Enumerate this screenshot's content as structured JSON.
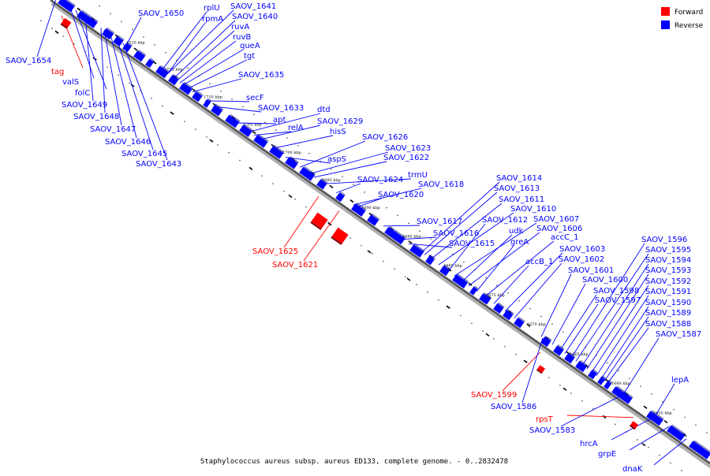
{
  "legend": {
    "forward_label": "Forward",
    "reverse_label": "Reverse",
    "forward_color": "#ff0000",
    "reverse_color": "#0000ff"
  },
  "caption": "Staphylococcus aureus subsp. aureus ED133, complete genome. - 0..2832478",
  "ticks": [
    "1720 kbp",
    "1715 kbp",
    "1710 kbp",
    "1705 kbp",
    "1700 kbp",
    "1695 kbp",
    "1690 kbp",
    "1685 kbp",
    "1680 kbp",
    "1675 kbp",
    "1670 kbp",
    "1665 kbp",
    "1660 kbp",
    "1655 kbp"
  ],
  "genes": [
    {
      "name": "SAOV_1650",
      "strand": "reverse"
    },
    {
      "name": "rplU",
      "strand": "reverse"
    },
    {
      "name": "SAOV_1641",
      "strand": "reverse"
    },
    {
      "name": "rpmA",
      "strand": "reverse"
    },
    {
      "name": "SAOV_1640",
      "strand": "reverse"
    },
    {
      "name": "ruvA",
      "strand": "reverse"
    },
    {
      "name": "ruvB",
      "strand": "reverse"
    },
    {
      "name": "queA",
      "strand": "reverse"
    },
    {
      "name": "tgt",
      "strand": "reverse"
    },
    {
      "name": "SAOV_1635",
      "strand": "reverse"
    },
    {
      "name": "secF",
      "strand": "reverse"
    },
    {
      "name": "SAOV_1633",
      "strand": "reverse"
    },
    {
      "name": "apt",
      "strand": "reverse"
    },
    {
      "name": "dtd",
      "strand": "reverse"
    },
    {
      "name": "relA",
      "strand": "reverse"
    },
    {
      "name": "SAOV_1629",
      "strand": "reverse"
    },
    {
      "name": "hisS",
      "strand": "reverse"
    },
    {
      "name": "aspS",
      "strand": "reverse"
    },
    {
      "name": "SAOV_1626",
      "strand": "reverse"
    },
    {
      "name": "SAOV_1623",
      "strand": "reverse"
    },
    {
      "name": "SAOV_1622",
      "strand": "reverse"
    },
    {
      "name": "trmU",
      "strand": "reverse"
    },
    {
      "name": "SAOV_1624",
      "strand": "reverse"
    },
    {
      "name": "SAOV_1618",
      "strand": "reverse"
    },
    {
      "name": "SAOV_1620",
      "strand": "reverse"
    },
    {
      "name": "SAOV_1614",
      "strand": "reverse"
    },
    {
      "name": "SAOV_1613",
      "strand": "reverse"
    },
    {
      "name": "SAOV_1611",
      "strand": "reverse"
    },
    {
      "name": "SAOV_1610",
      "strand": "reverse"
    },
    {
      "name": "SAOV_1617",
      "strand": "reverse"
    },
    {
      "name": "SAOV_1612",
      "strand": "reverse"
    },
    {
      "name": "SAOV_1607",
      "strand": "reverse"
    },
    {
      "name": "SAOV_1616",
      "strand": "reverse"
    },
    {
      "name": "udk",
      "strand": "reverse"
    },
    {
      "name": "SAOV_1606",
      "strand": "reverse"
    },
    {
      "name": "SAOV_1615",
      "strand": "reverse"
    },
    {
      "name": "greA",
      "strand": "reverse"
    },
    {
      "name": "accC_1",
      "strand": "reverse"
    },
    {
      "name": "accB_1",
      "strand": "reverse"
    },
    {
      "name": "SAOV_1603",
      "strand": "reverse"
    },
    {
      "name": "SAOV_1602",
      "strand": "reverse"
    },
    {
      "name": "SAOV_1601",
      "strand": "reverse"
    },
    {
      "name": "SAOV_1600",
      "strand": "reverse"
    },
    {
      "name": "SAOV_1598",
      "strand": "reverse"
    },
    {
      "name": "SAOV_1597",
      "strand": "reverse"
    },
    {
      "name": "SAOV_1596",
      "strand": "reverse"
    },
    {
      "name": "SAOV_1595",
      "strand": "reverse"
    },
    {
      "name": "SAOV_1594",
      "strand": "reverse"
    },
    {
      "name": "SAOV_1593",
      "strand": "reverse"
    },
    {
      "name": "SAOV_1592",
      "strand": "reverse"
    },
    {
      "name": "SAOV_1591",
      "strand": "reverse"
    },
    {
      "name": "SAOV_1590",
      "strand": "reverse"
    },
    {
      "name": "SAOV_1589",
      "strand": "reverse"
    },
    {
      "name": "SAOV_1588",
      "strand": "reverse"
    },
    {
      "name": "SAOV_1587",
      "strand": "reverse"
    },
    {
      "name": "lepA",
      "strand": "reverse"
    },
    {
      "name": "SAOV_1654",
      "strand": "reverse"
    },
    {
      "name": "tag",
      "strand": "forward"
    },
    {
      "name": "valS",
      "strand": "reverse"
    },
    {
      "name": "folC",
      "strand": "reverse"
    },
    {
      "name": "SAOV_1649",
      "strand": "reverse"
    },
    {
      "name": "SAOV_1648",
      "strand": "reverse"
    },
    {
      "name": "SAOV_1647",
      "strand": "reverse"
    },
    {
      "name": "SAOV_1646",
      "strand": "reverse"
    },
    {
      "name": "SAOV_1645",
      "strand": "reverse"
    },
    {
      "name": "SAOV_1643",
      "strand": "reverse"
    },
    {
      "name": "SAOV_1625",
      "strand": "forward"
    },
    {
      "name": "SAOV_1621",
      "strand": "forward"
    },
    {
      "name": "SAOV_1599",
      "strand": "forward"
    },
    {
      "name": "SAOV_1586",
      "strand": "reverse"
    },
    {
      "name": "rpsT",
      "strand": "forward"
    },
    {
      "name": "SAOV_1583",
      "strand": "reverse"
    },
    {
      "name": "hrcA",
      "strand": "reverse"
    },
    {
      "name": "grpE",
      "strand": "reverse"
    },
    {
      "name": "dnaK",
      "strand": "reverse"
    }
  ]
}
